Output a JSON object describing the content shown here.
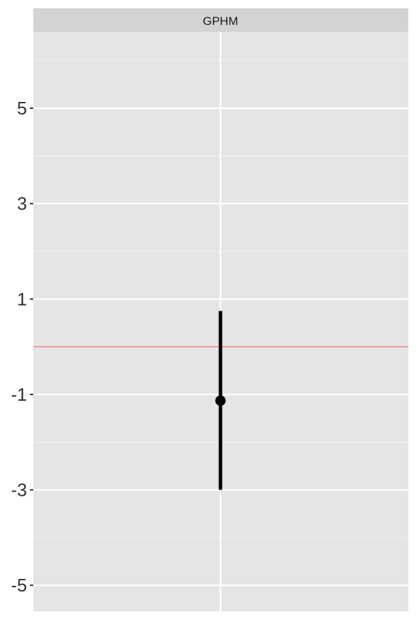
{
  "chart_data": {
    "type": "pointrange",
    "facet_label": "GPHM",
    "ylim": [
      -5.55,
      6.6
    ],
    "y_ticks": [
      5,
      3,
      1,
      -1,
      -3,
      -5
    ],
    "y_tick_labels": [
      "5",
      "3",
      "1",
      "-1",
      "-3",
      "-5"
    ],
    "y_minor_breaks": [
      6,
      4,
      2,
      0,
      -2,
      -4
    ],
    "reference_line": {
      "y": 0,
      "color": "#f08080"
    },
    "points": [
      {
        "x": "",
        "estimate": -1.13,
        "lower": -3.0,
        "upper": 0.75
      }
    ],
    "grid": true,
    "panel_background": "#e5e5e5",
    "strip_background": "#d3d3d3",
    "point_color": "#000000"
  }
}
